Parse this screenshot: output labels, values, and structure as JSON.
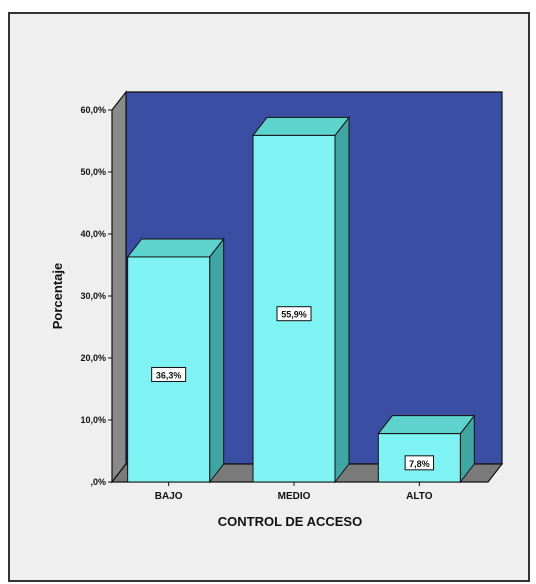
{
  "chart_data": {
    "type": "bar",
    "title": "",
    "xlabel": "CONTROL DE ACCESO",
    "ylabel": "Porcentaje",
    "categories": [
      "BAJO",
      "MEDIO",
      "ALTO"
    ],
    "values": [
      36.3,
      55.9,
      7.8
    ],
    "data_labels": [
      "36,3%",
      "55,9%",
      "7,8%"
    ],
    "ylim": [
      0,
      60
    ],
    "y_ticks": [
      0,
      10,
      20,
      30,
      40,
      50,
      60
    ],
    "y_tick_labels": [
      ",0%",
      "10,0%",
      "20,0%",
      "30,0%",
      "40,0%",
      "50,0%",
      "60,0%"
    ],
    "style": "3d",
    "grid": false,
    "legend": "none",
    "colors": {
      "frame_background": "#efefef",
      "plot_background": "#3a4fa3",
      "side_wall": "#8a8a8a",
      "floor": "#7a7a7a",
      "bar_front": "#7ff3f3",
      "bar_top": "#5ed2cc",
      "bar_side": "#3fa6a3",
      "outline": "#111111"
    }
  }
}
